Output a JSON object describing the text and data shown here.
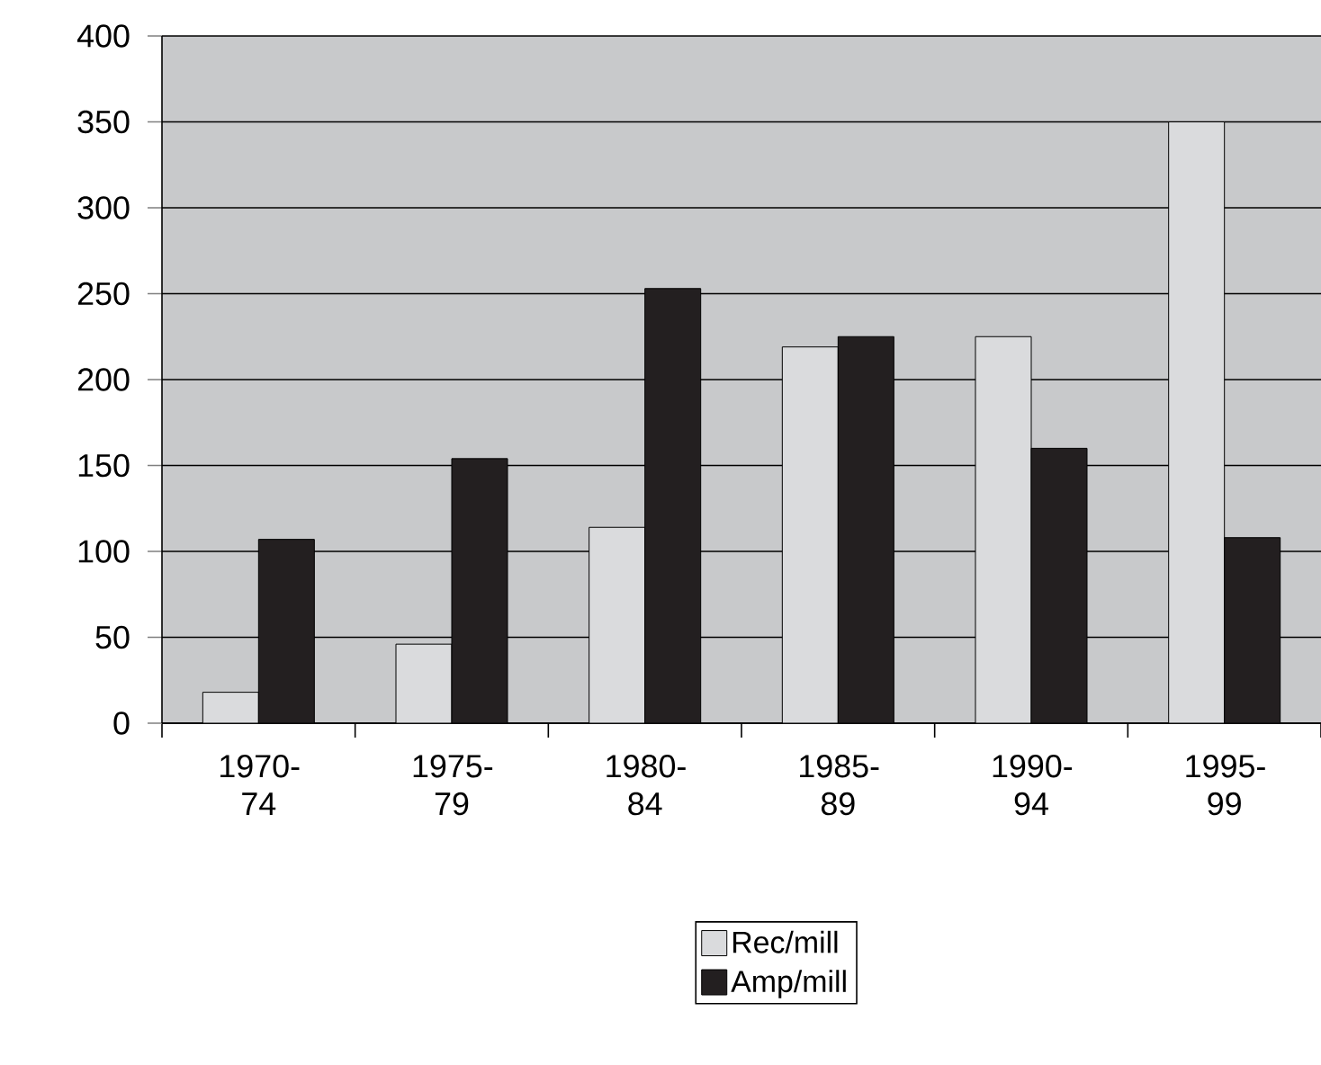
{
  "chart_data": {
    "type": "bar",
    "categories": [
      "1970-74",
      "1975-79",
      "1980-84",
      "1985-89",
      "1990-94",
      "1995-99"
    ],
    "series": [
      {
        "name": "Rec/mill",
        "color": "#dadbdd",
        "values": [
          18,
          46,
          114,
          219,
          225,
          350
        ]
      },
      {
        "name": "Amp/mill",
        "color": "#231f20",
        "values": [
          107,
          154,
          253,
          225,
          160,
          108
        ]
      }
    ],
    "ylim": [
      0,
      400
    ],
    "yticks": [
      0,
      50,
      100,
      150,
      200,
      250,
      300,
      350,
      400
    ],
    "grid": "y",
    "legend": "bottom"
  }
}
